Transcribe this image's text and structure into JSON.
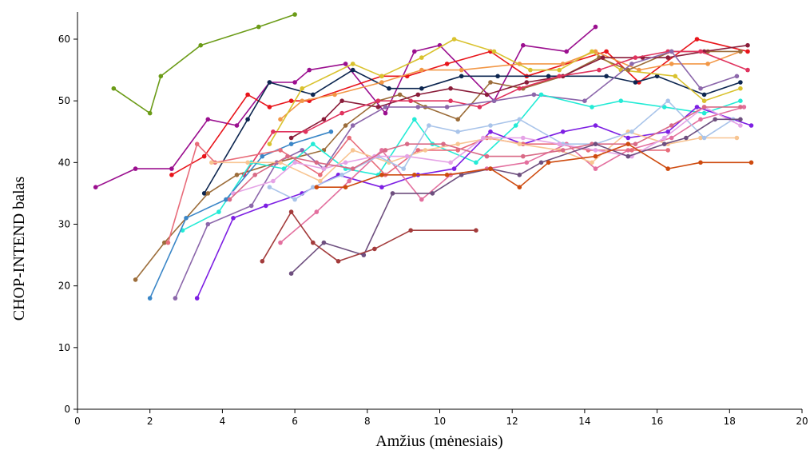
{
  "chart_data": {
    "type": "line",
    "title": "",
    "xlabel": "Amžius (mėnesiais)",
    "ylabel": "CHOP-INTEND balas",
    "xlim": [
      0,
      20
    ],
    "ylim": [
      0,
      65
    ],
    "xticks": [
      0,
      2,
      4,
      6,
      8,
      10,
      12,
      14,
      16,
      18,
      20
    ],
    "yticks": [
      0,
      10,
      20,
      30,
      40,
      50,
      60
    ],
    "grid": false,
    "legend": "none",
    "series": [
      {
        "color": "#6b9b17",
        "points": [
          [
            1,
            52
          ],
          [
            2,
            48
          ],
          [
            2.3,
            54
          ],
          [
            3.4,
            59
          ],
          [
            5,
            62
          ],
          [
            6,
            64
          ]
        ]
      },
      {
        "color": "#9b0f8f",
        "points": [
          [
            0.5,
            36
          ],
          [
            1.6,
            39
          ],
          [
            2.6,
            39
          ],
          [
            3.6,
            47
          ],
          [
            4.4,
            46
          ],
          [
            5.3,
            53
          ],
          [
            6,
            53
          ],
          [
            6.4,
            55
          ],
          [
            7.4,
            56
          ],
          [
            8.5,
            48
          ],
          [
            9.3,
            58
          ],
          [
            10,
            59
          ],
          [
            11.5,
            50
          ],
          [
            12.3,
            59
          ],
          [
            13.5,
            58
          ],
          [
            14.3,
            62
          ]
        ]
      },
      {
        "color": "#e8141a",
        "points": [
          [
            2.6,
            38
          ],
          [
            3.5,
            41
          ],
          [
            4.7,
            51
          ],
          [
            5.3,
            49
          ],
          [
            5.9,
            50
          ],
          [
            6.4,
            50
          ],
          [
            8.4,
            54
          ],
          [
            9.1,
            54
          ],
          [
            10.2,
            56
          ],
          [
            11.4,
            58
          ],
          [
            12.4,
            54
          ],
          [
            14.6,
            58
          ],
          [
            15.5,
            53
          ],
          [
            17.1,
            60
          ],
          [
            18.5,
            58
          ]
        ]
      },
      {
        "color": "#0d2650",
        "points": [
          [
            3.5,
            35
          ],
          [
            4.7,
            47
          ],
          [
            5.3,
            53
          ],
          [
            6.5,
            51
          ],
          [
            7.6,
            55
          ],
          [
            8.6,
            52
          ],
          [
            9.5,
            52
          ],
          [
            10.6,
            54
          ],
          [
            11.6,
            54
          ],
          [
            13,
            54
          ],
          [
            14.6,
            54
          ],
          [
            15.4,
            53
          ],
          [
            16,
            54
          ],
          [
            17.3,
            51
          ],
          [
            18.3,
            53
          ]
        ]
      },
      {
        "color": "#f29746",
        "points": [
          [
            5.6,
            47
          ],
          [
            6.2,
            50
          ],
          [
            7.1,
            51
          ],
          [
            8.4,
            53
          ],
          [
            9.5,
            55
          ],
          [
            10.6,
            55
          ],
          [
            12.2,
            56
          ],
          [
            13.4,
            56
          ],
          [
            14.3,
            58
          ],
          [
            15.5,
            55
          ],
          [
            16.4,
            56
          ],
          [
            17.4,
            56
          ],
          [
            18.3,
            58
          ]
        ]
      },
      {
        "color": "#d9c22e",
        "points": [
          [
            5.3,
            43
          ],
          [
            6.2,
            52
          ],
          [
            7.6,
            56
          ],
          [
            8.4,
            54
          ],
          [
            9.5,
            57
          ],
          [
            10.4,
            60
          ],
          [
            11.5,
            58
          ],
          [
            12.5,
            55
          ],
          [
            13.3,
            55
          ],
          [
            14.2,
            58
          ],
          [
            15,
            55
          ],
          [
            16.5,
            54
          ],
          [
            17.3,
            50
          ],
          [
            18.3,
            52
          ]
        ]
      },
      {
        "color": "#9c6d3a",
        "points": [
          [
            1.6,
            21
          ],
          [
            2.4,
            27
          ],
          [
            3.6,
            35
          ],
          [
            4.4,
            38
          ],
          [
            5.5,
            40
          ],
          [
            6.8,
            42
          ],
          [
            7.4,
            46
          ],
          [
            8.3,
            50
          ],
          [
            8.9,
            51
          ],
          [
            9.6,
            49
          ],
          [
            10.5,
            47
          ],
          [
            11.4,
            53
          ],
          [
            12.3,
            52
          ],
          [
            13.4,
            54
          ],
          [
            14.4,
            57
          ],
          [
            15.2,
            55
          ],
          [
            16.4,
            58
          ],
          [
            17.4,
            58
          ],
          [
            18.3,
            58
          ]
        ]
      },
      {
        "color": "#8a1d3a",
        "points": [
          [
            5.9,
            44
          ],
          [
            6.8,
            47
          ],
          [
            7.3,
            50
          ],
          [
            8.3,
            49
          ],
          [
            9.4,
            51
          ],
          [
            10.3,
            52
          ],
          [
            11.3,
            51
          ],
          [
            12.4,
            53
          ],
          [
            13.4,
            54
          ],
          [
            14.5,
            57
          ],
          [
            15.6,
            57
          ],
          [
            16.3,
            57
          ],
          [
            17.3,
            58
          ],
          [
            18.5,
            59
          ]
        ]
      },
      {
        "color": "#e0335e",
        "points": [
          [
            4.6,
            38
          ],
          [
            5.4,
            45
          ],
          [
            6.3,
            45
          ],
          [
            7.3,
            48
          ],
          [
            8.3,
            50
          ],
          [
            9.2,
            50
          ],
          [
            10.3,
            50
          ],
          [
            11.1,
            49
          ],
          [
            12.2,
            52
          ],
          [
            13.3,
            54
          ],
          [
            14.4,
            55
          ],
          [
            15.4,
            57
          ],
          [
            16.3,
            58
          ],
          [
            17.2,
            58
          ],
          [
            18.5,
            55
          ]
        ]
      },
      {
        "color": "#8c67ab",
        "points": [
          [
            2.7,
            18
          ],
          [
            3.6,
            30
          ],
          [
            4.8,
            33
          ],
          [
            5.5,
            40
          ],
          [
            6.2,
            42
          ],
          [
            6.8,
            39
          ],
          [
            7.6,
            46
          ],
          [
            8.5,
            49
          ],
          [
            9.4,
            49
          ],
          [
            10.2,
            49
          ],
          [
            11.5,
            50
          ],
          [
            12.6,
            51
          ],
          [
            14,
            50
          ],
          [
            15.3,
            56
          ],
          [
            16.4,
            58
          ],
          [
            17.2,
            52
          ],
          [
            18.2,
            54
          ]
        ]
      },
      {
        "color": "#23ebd6",
        "points": [
          [
            2.9,
            29
          ],
          [
            3.9,
            32
          ],
          [
            4.8,
            40
          ],
          [
            5.7,
            39
          ],
          [
            6.5,
            43
          ],
          [
            7.4,
            39
          ],
          [
            8.3,
            38
          ],
          [
            9.3,
            47
          ],
          [
            9.8,
            43
          ],
          [
            11,
            40
          ],
          [
            12.1,
            46
          ],
          [
            12.8,
            51
          ],
          [
            14.2,
            49
          ],
          [
            15,
            50
          ],
          [
            16.2,
            49
          ],
          [
            17.3,
            48
          ],
          [
            18.3,
            50
          ]
        ]
      },
      {
        "color": "#7d1fe3",
        "points": [
          [
            3.3,
            18
          ],
          [
            4.3,
            31
          ],
          [
            5.2,
            33
          ],
          [
            6.2,
            35
          ],
          [
            7.2,
            38
          ],
          [
            8.4,
            36
          ],
          [
            9.4,
            38
          ],
          [
            10.4,
            39
          ],
          [
            11.4,
            45
          ],
          [
            12.3,
            43
          ],
          [
            13.4,
            45
          ],
          [
            14.3,
            46
          ],
          [
            15.2,
            44
          ],
          [
            16.3,
            45
          ],
          [
            17.1,
            49
          ],
          [
            18.6,
            46
          ]
        ]
      },
      {
        "color": "#3a86c7",
        "points": [
          [
            2,
            18
          ],
          [
            3,
            31
          ],
          [
            4.1,
            34
          ],
          [
            5.1,
            41
          ],
          [
            5.9,
            43
          ],
          [
            7,
            45
          ]
        ]
      },
      {
        "color": "#e36f9e",
        "points": [
          [
            5.6,
            27
          ],
          [
            6.6,
            32
          ],
          [
            7.5,
            37
          ],
          [
            8.4,
            42
          ],
          [
            9.5,
            34
          ],
          [
            10.3,
            38
          ],
          [
            11.3,
            39
          ],
          [
            12.4,
            40
          ],
          [
            13.5,
            43
          ],
          [
            14.3,
            39
          ],
          [
            15.2,
            42
          ],
          [
            16.4,
            44
          ],
          [
            17.2,
            47
          ],
          [
            18.4,
            49
          ]
        ]
      },
      {
        "color": "#e86c7a",
        "points": [
          [
            2.5,
            27
          ],
          [
            3.3,
            43
          ],
          [
            3.8,
            40
          ],
          [
            5.6,
            42
          ],
          [
            6.7,
            38
          ],
          [
            7.5,
            44
          ],
          [
            8.5,
            38
          ],
          [
            9.4,
            42
          ],
          [
            10.5,
            42
          ],
          [
            11.3,
            44
          ],
          [
            12.3,
            43
          ],
          [
            13.3,
            43
          ],
          [
            14.1,
            42
          ],
          [
            15.3,
            42
          ],
          [
            16.3,
            42
          ]
        ]
      },
      {
        "color": "#f8c592",
        "points": [
          [
            3.7,
            40
          ],
          [
            4.7,
            40
          ],
          [
            5.6,
            40
          ],
          [
            6.7,
            37
          ],
          [
            7.6,
            42
          ],
          [
            8.6,
            40
          ],
          [
            9.6,
            42
          ],
          [
            10.5,
            43
          ],
          [
            11.4,
            44
          ],
          [
            12.2,
            43
          ],
          [
            13.3,
            42
          ],
          [
            14.2,
            40
          ],
          [
            15.2,
            45
          ],
          [
            16.3,
            43
          ],
          [
            17.2,
            44
          ],
          [
            18.2,
            44
          ]
        ]
      },
      {
        "color": "#a9c4ea",
        "points": [
          [
            5.3,
            36
          ],
          [
            6,
            34
          ],
          [
            6.5,
            36
          ],
          [
            7.3,
            38
          ],
          [
            8.3,
            41
          ],
          [
            9,
            39
          ],
          [
            9.7,
            46
          ],
          [
            10.5,
            45
          ],
          [
            11.4,
            46
          ],
          [
            12.2,
            47
          ],
          [
            13.4,
            43
          ],
          [
            14.3,
            43
          ],
          [
            15.3,
            45
          ],
          [
            16.3,
            50
          ],
          [
            17.3,
            44
          ],
          [
            18.1,
            47
          ]
        ]
      },
      {
        "color": "#e5a3e6",
        "points": [
          [
            4.3,
            35
          ],
          [
            5.4,
            37
          ],
          [
            6,
            40
          ],
          [
            6.8,
            39
          ],
          [
            7.4,
            40
          ],
          [
            8.2,
            41
          ],
          [
            9.1,
            41
          ],
          [
            10.3,
            40
          ],
          [
            11.2,
            44
          ],
          [
            12.3,
            44
          ],
          [
            13.3,
            43
          ],
          [
            14.3,
            42
          ],
          [
            15.3,
            41
          ],
          [
            16.2,
            44
          ],
          [
            17.3,
            49
          ],
          [
            18.3,
            46
          ]
        ]
      },
      {
        "color": "#d96a86",
        "points": [
          [
            4.2,
            34
          ],
          [
            4.9,
            38
          ],
          [
            5.8,
            41
          ],
          [
            6.6,
            40
          ],
          [
            7.6,
            39
          ],
          [
            8.5,
            42
          ],
          [
            9.1,
            43
          ],
          [
            10.1,
            43
          ],
          [
            11.3,
            41
          ],
          [
            12.3,
            41
          ],
          [
            13.4,
            42
          ],
          [
            14.2,
            43
          ],
          [
            15.4,
            43
          ],
          [
            16.4,
            46
          ],
          [
            17.3,
            49
          ],
          [
            18.3,
            49
          ]
        ]
      },
      {
        "color": "#6e4f7f",
        "points": [
          [
            5.9,
            22
          ],
          [
            6.8,
            27
          ],
          [
            7.9,
            25
          ],
          [
            8.7,
            35
          ],
          [
            9.8,
            35
          ],
          [
            10.6,
            38
          ],
          [
            11.4,
            39
          ],
          [
            12.2,
            38
          ],
          [
            12.8,
            40
          ],
          [
            14.3,
            43
          ],
          [
            15.2,
            41
          ],
          [
            16.2,
            43
          ],
          [
            16.8,
            44
          ],
          [
            17.6,
            47
          ],
          [
            18.3,
            47
          ]
        ]
      },
      {
        "color": "#ce4a0e",
        "points": [
          [
            6.6,
            36
          ],
          [
            7.4,
            36
          ],
          [
            8.4,
            38
          ],
          [
            9.3,
            38
          ],
          [
            10.2,
            38
          ],
          [
            11.4,
            39
          ],
          [
            12.2,
            36
          ],
          [
            13,
            40
          ],
          [
            14.3,
            41
          ],
          [
            15.2,
            43
          ],
          [
            16.3,
            39
          ],
          [
            17.2,
            40
          ],
          [
            18.6,
            40
          ]
        ]
      },
      {
        "color": "#a33b3b",
        "points": [
          [
            5.1,
            24
          ],
          [
            5.9,
            32
          ],
          [
            6.5,
            27
          ],
          [
            7.2,
            24
          ],
          [
            8.2,
            26
          ],
          [
            9.2,
            29
          ],
          [
            11,
            29
          ]
        ]
      }
    ]
  }
}
